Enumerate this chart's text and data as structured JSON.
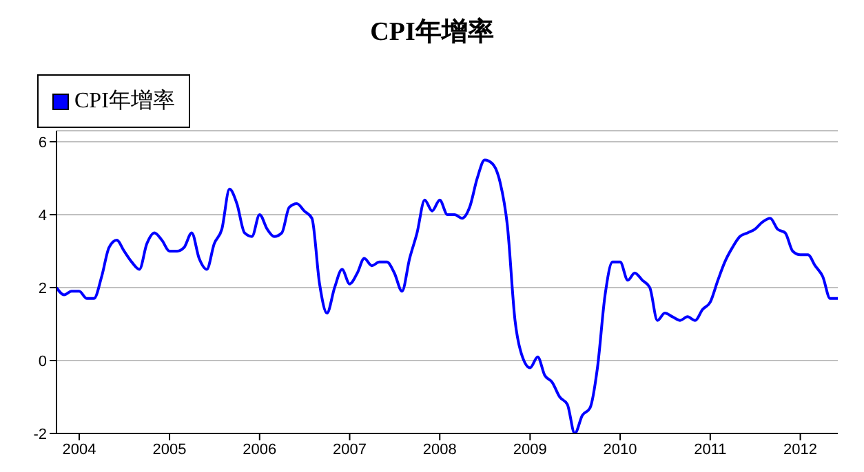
{
  "chart_data": {
    "type": "line",
    "title": "CPI年增率",
    "x": [
      "2003-10",
      "2003-11",
      "2003-12",
      "2004-01",
      "2004-02",
      "2004-03",
      "2004-04",
      "2004-05",
      "2004-06",
      "2004-07",
      "2004-08",
      "2004-09",
      "2004-10",
      "2004-11",
      "2004-12",
      "2005-01",
      "2005-02",
      "2005-03",
      "2005-04",
      "2005-05",
      "2005-06",
      "2005-07",
      "2005-08",
      "2005-09",
      "2005-10",
      "2005-11",
      "2005-12",
      "2006-01",
      "2006-02",
      "2006-03",
      "2006-04",
      "2006-05",
      "2006-06",
      "2006-07",
      "2006-08",
      "2006-09",
      "2006-10",
      "2006-11",
      "2006-12",
      "2007-01",
      "2007-02",
      "2007-03",
      "2007-04",
      "2007-05",
      "2007-06",
      "2007-07",
      "2007-08",
      "2007-09",
      "2007-10",
      "2007-11",
      "2007-12",
      "2008-01",
      "2008-02",
      "2008-03",
      "2008-04",
      "2008-05",
      "2008-06",
      "2008-07",
      "2008-08",
      "2008-09",
      "2008-10",
      "2008-11",
      "2008-12",
      "2009-01",
      "2009-02",
      "2009-03",
      "2009-04",
      "2009-05",
      "2009-06",
      "2009-07",
      "2009-08",
      "2009-09",
      "2009-10",
      "2009-11",
      "2009-12",
      "2010-01",
      "2010-02",
      "2010-03",
      "2010-04",
      "2010-05",
      "2010-06",
      "2010-07",
      "2010-08",
      "2010-09",
      "2010-10",
      "2010-11",
      "2010-12",
      "2011-01",
      "2011-02",
      "2011-03",
      "2011-04",
      "2011-05",
      "2011-06",
      "2011-07",
      "2011-08",
      "2011-09",
      "2011-10",
      "2011-11",
      "2011-12",
      "2012-01",
      "2012-02",
      "2012-03",
      "2012-04",
      "2012-05",
      "2012-06"
    ],
    "series": [
      {
        "name": "CPI年增率",
        "color": "#0000ff",
        "values": [
          2.0,
          1.8,
          1.9,
          1.9,
          1.7,
          1.7,
          2.3,
          3.1,
          3.3,
          3.0,
          2.7,
          2.5,
          3.2,
          3.5,
          3.3,
          3.0,
          3.0,
          3.1,
          3.5,
          2.8,
          2.5,
          3.2,
          3.6,
          4.7,
          4.3,
          3.5,
          3.4,
          4.0,
          3.6,
          3.4,
          3.5,
          4.2,
          4.3,
          4.1,
          3.9,
          2.1,
          1.3,
          2.0,
          2.5,
          2.1,
          2.4,
          2.8,
          2.6,
          2.7,
          2.7,
          2.4,
          1.9,
          2.8,
          3.5,
          4.4,
          4.1,
          4.4,
          4.0,
          4.0,
          3.9,
          4.2,
          5.0,
          5.5,
          5.4,
          4.9,
          3.7,
          1.1,
          0.1,
          -0.2,
          0.1,
          -0.4,
          -0.6,
          -1.0,
          -1.2,
          -2.0,
          -1.5,
          -1.3,
          -0.2,
          1.8,
          2.7,
          2.7,
          2.2,
          2.4,
          2.2,
          2.0,
          1.1,
          1.3,
          1.2,
          1.1,
          1.2,
          1.1,
          1.4,
          1.6,
          2.2,
          2.7,
          3.1,
          3.4,
          3.5,
          3.6,
          3.8,
          3.9,
          3.6,
          3.5,
          3.0,
          2.9,
          2.9,
          2.6,
          2.3,
          1.7,
          1.7
        ]
      }
    ],
    "xlim": [
      "2003-10",
      "2012-06"
    ],
    "xticks": [
      "2004",
      "2005",
      "2006",
      "2007",
      "2008",
      "2009",
      "2010",
      "2011",
      "2012"
    ],
    "ylim": [
      -2,
      6.3
    ],
    "yticks": [
      -2,
      0,
      2,
      4,
      6
    ],
    "grid": "y",
    "legend": "top left",
    "marker": "none",
    "line_style": "solid"
  }
}
